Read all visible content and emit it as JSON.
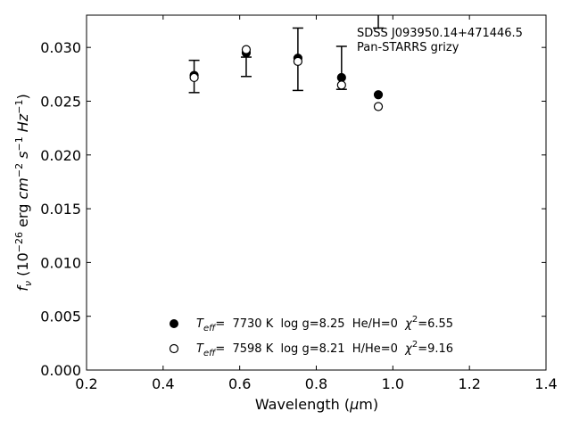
{
  "chart_data": {
    "type": "scatter",
    "title": "",
    "annotations": [
      "SDSS J093950.14+471446.5",
      "Pan-STARRS grizy"
    ],
    "xlabel": "Wavelength (μm)",
    "ylabel": "fν (10⁻²⁶ erg cm⁻² s⁻¹ Hz⁻¹)",
    "xlim": [
      0.2,
      1.4
    ],
    "ylim": [
      0.0,
      0.033
    ],
    "xticks": [
      "0.2",
      "0.4",
      "0.6",
      "0.8",
      "1.0",
      "1.2",
      "1.4"
    ],
    "yticks": [
      "0.000",
      "0.005",
      "0.010",
      "0.015",
      "0.020",
      "0.025",
      "0.030"
    ],
    "grid": false,
    "legend_position": "bottom-center",
    "observed": {
      "x": [
        0.481,
        0.617,
        0.752,
        0.866,
        0.962
      ],
      "y": [
        0.0273,
        0.0282,
        0.0289,
        0.0281,
        0.0325
      ],
      "yerr": [
        0.0015,
        0.0009,
        0.0029,
        0.002,
        0.0007
      ]
    },
    "series": [
      {
        "name": "Teff= 7730 K log g=8.25 He/H=0 χ²=6.55",
        "marker": "filled-circle",
        "x": [
          0.481,
          0.617,
          0.752,
          0.866,
          0.962
        ],
        "y": [
          0.0274,
          0.0295,
          0.029,
          0.0272,
          0.0256
        ]
      },
      {
        "name": "Teff= 7598 K log g=8.21 H/He=0 χ²=9.16",
        "marker": "open-circle",
        "x": [
          0.481,
          0.617,
          0.752,
          0.866,
          0.962
        ],
        "y": [
          0.0272,
          0.0298,
          0.0287,
          0.0265,
          0.0245
        ]
      }
    ],
    "legend": [
      {
        "teff_label": "T",
        "teff_sub": "eff",
        "text": "=  7730 K  log g=8.25  He/H=0  ",
        "chi_label": "χ",
        "chi_sup": "2",
        "chi_value": "=6.55"
      },
      {
        "teff_label": "T",
        "teff_sub": "eff",
        "text": "=  7598 K  log g=8.21  H/He=0  ",
        "chi_label": "χ",
        "chi_sup": "2",
        "chi_value": "=9.16"
      }
    ]
  }
}
